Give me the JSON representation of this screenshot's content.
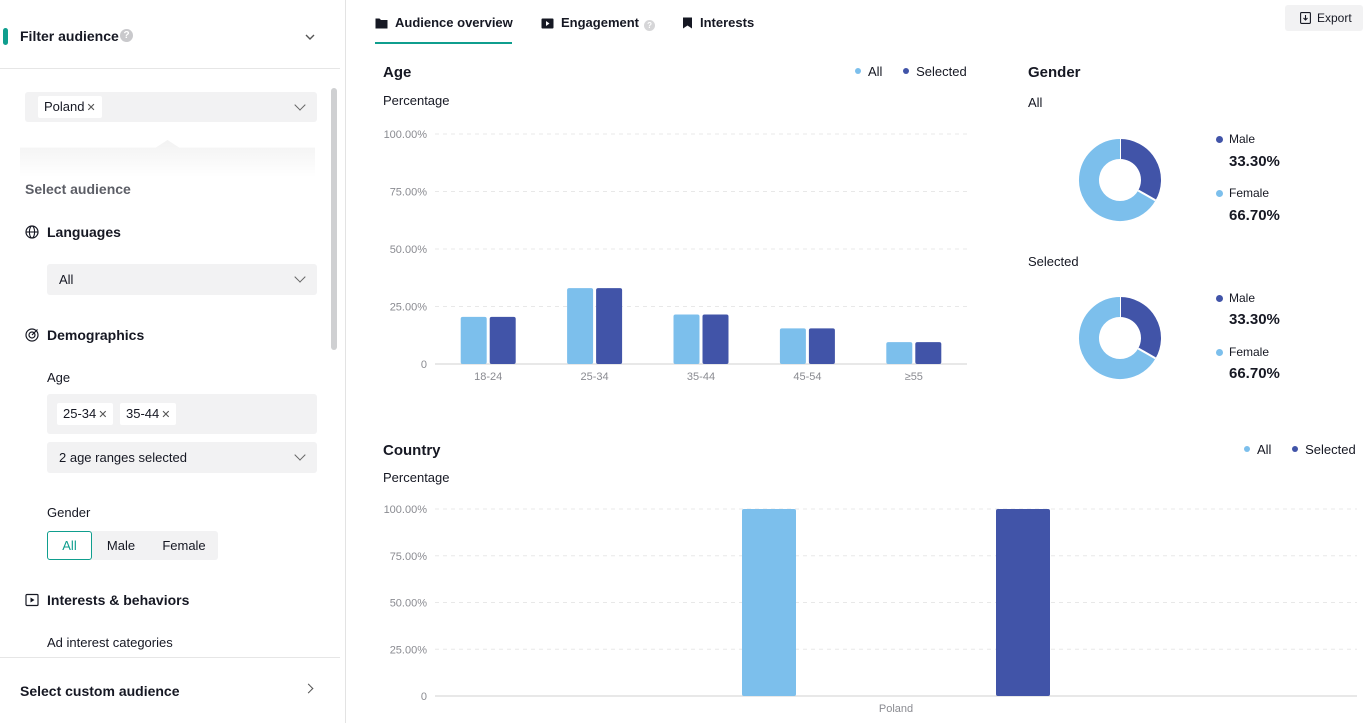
{
  "colors": {
    "accent": "#0f9e8e",
    "all": "#7cbfec",
    "selected": "#4154a8",
    "grid": "#e8e8e8"
  },
  "filter": {
    "title": "Filter audience",
    "help_icon": "question-circle-icon",
    "chevron_icon": "chevron-down-icon"
  },
  "country": {
    "tag": "Poland"
  },
  "select_audience": {
    "label": "Select audience"
  },
  "languages": {
    "title": "Languages",
    "icon": "globe-icon",
    "value": "All"
  },
  "demographics": {
    "title": "Demographics",
    "icon": "target-icon",
    "age_label": "Age",
    "age_tags": [
      "25-34",
      "35-44"
    ],
    "age_select_value": "2 age ranges selected",
    "gender_label": "Gender",
    "gender_options": [
      "All",
      "Male",
      "Female"
    ],
    "gender_selected": "All"
  },
  "interests": {
    "title": "Interests & behaviors",
    "icon": "play-square-icon",
    "sub_label": "Ad interest categories"
  },
  "custom_audience": {
    "label": "Select custom audience"
  },
  "tabs": [
    {
      "label": "Audience overview",
      "icon": "folder-icon",
      "active": true
    },
    {
      "label": "Engagement",
      "icon": "video-icon",
      "help": "?"
    },
    {
      "label": "Interests",
      "icon": "bookmark-icon"
    }
  ],
  "export": {
    "label": "Export",
    "icon": "export-icon"
  },
  "age_card": {
    "title": "Age",
    "y_label": "Percentage",
    "legend_all": "All",
    "legend_selected": "Selected"
  },
  "country_card": {
    "title": "Country",
    "y_label": "Percentage",
    "legend_all": "All",
    "legend_selected": "Selected"
  },
  "gender_card": {
    "title": "Gender",
    "panels": [
      {
        "label": "All",
        "male_label": "Male",
        "male_value": "33.30%",
        "female_label": "Female",
        "female_value": "66.70%"
      },
      {
        "label": "Selected",
        "male_label": "Male",
        "male_value": "33.30%",
        "female_label": "Female",
        "female_value": "66.70%"
      }
    ]
  },
  "chart_data": [
    {
      "type": "bar",
      "title": "Age",
      "ylabel": "Percentage",
      "categories": [
        "18-24",
        "25-34",
        "35-44",
        "45-54",
        "≥55"
      ],
      "series": [
        {
          "name": "All",
          "values": [
            20.5,
            33,
            21.5,
            15.5,
            9.5
          ]
        },
        {
          "name": "Selected",
          "values": [
            20.5,
            33,
            21.5,
            15.5,
            9.5
          ]
        }
      ],
      "y_ticks": [
        "0",
        "25.00%",
        "50.00%",
        "75.00%",
        "100.00%"
      ],
      "ylim": [
        0,
        100
      ],
      "grid": true,
      "legend": "top-right"
    },
    {
      "type": "bar",
      "title": "Country",
      "ylabel": "Percentage",
      "categories": [
        "Poland"
      ],
      "series": [
        {
          "name": "All",
          "values": [
            100
          ]
        },
        {
          "name": "Selected",
          "values": [
            100
          ]
        }
      ],
      "y_ticks": [
        "0",
        "25.00%",
        "50.00%",
        "75.00%",
        "100.00%"
      ],
      "ylim": [
        0,
        100
      ],
      "grid": true,
      "legend": "top-right"
    },
    {
      "type": "pie",
      "title": "Gender",
      "panels": [
        {
          "name": "All",
          "labels": [
            "Male",
            "Female"
          ],
          "values": [
            33.3,
            66.7
          ]
        },
        {
          "name": "Selected",
          "labels": [
            "Male",
            "Female"
          ],
          "values": [
            33.3,
            66.7
          ]
        }
      ]
    }
  ]
}
